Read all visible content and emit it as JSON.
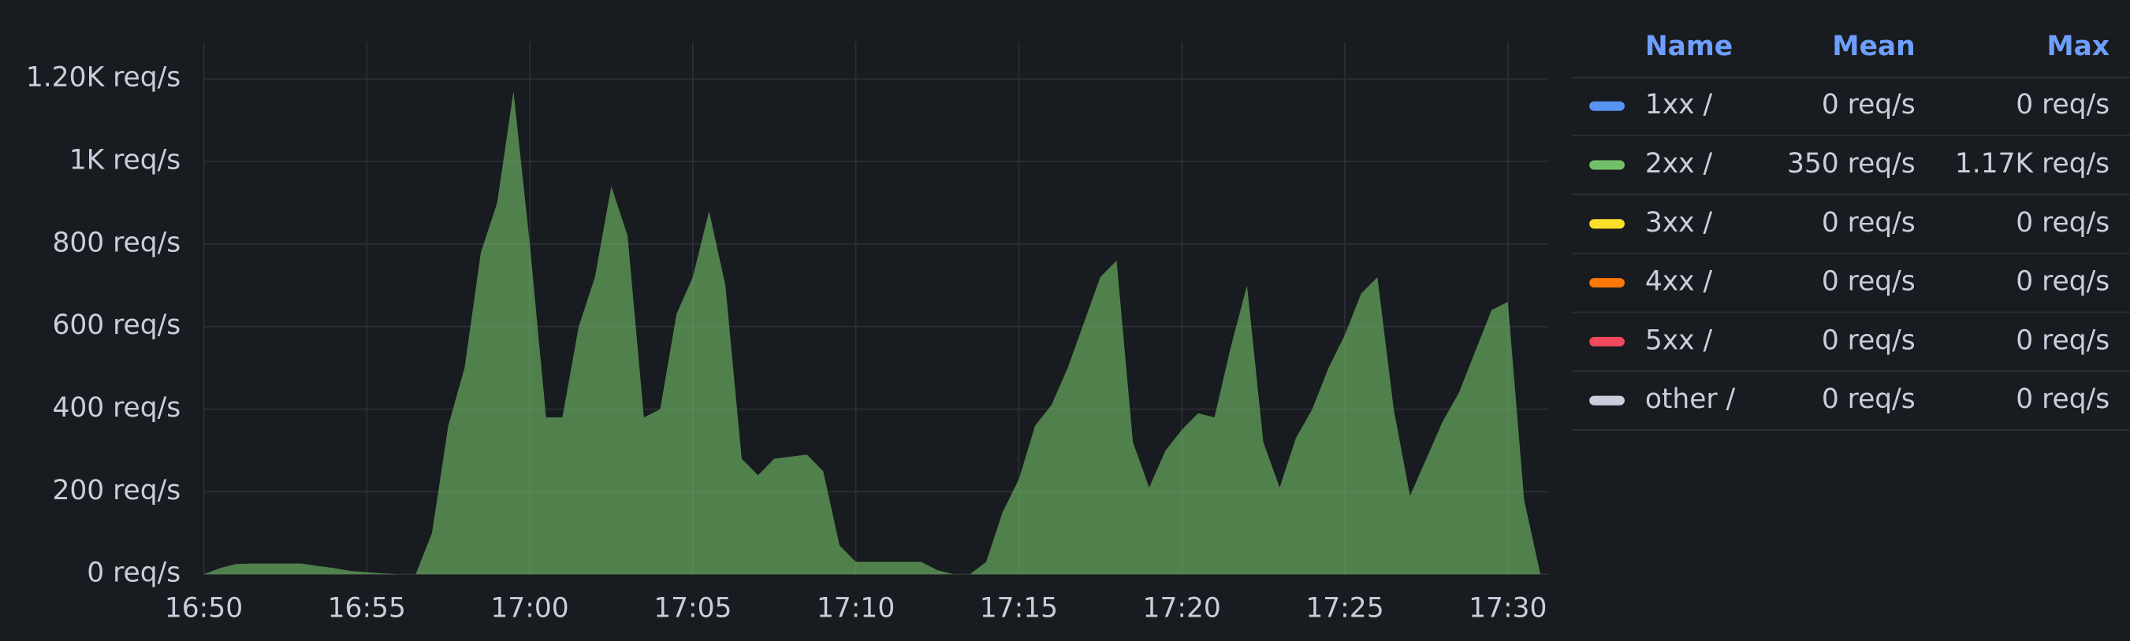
{
  "chart_data": {
    "type": "area",
    "x": [
      "16:50:00",
      "16:50:30",
      "16:51:00",
      "16:51:30",
      "16:52:00",
      "16:52:30",
      "16:53:00",
      "16:53:30",
      "16:54:00",
      "16:54:30",
      "16:55:00",
      "16:55:30",
      "16:56:00",
      "16:56:30",
      "16:57:00",
      "16:57:30",
      "16:58:00",
      "16:58:30",
      "16:59:00",
      "16:59:30",
      "17:00:00",
      "17:00:30",
      "17:01:00",
      "17:01:30",
      "17:02:00",
      "17:02:30",
      "17:03:00",
      "17:03:30",
      "17:04:00",
      "17:04:30",
      "17:05:00",
      "17:05:30",
      "17:06:00",
      "17:06:30",
      "17:07:00",
      "17:07:30",
      "17:08:00",
      "17:08:30",
      "17:09:00",
      "17:09:30",
      "17:10:00",
      "17:10:30",
      "17:11:00",
      "17:11:30",
      "17:12:00",
      "17:12:30",
      "17:13:00",
      "17:13:30",
      "17:14:00",
      "17:14:30",
      "17:15:00",
      "17:15:30",
      "17:16:00",
      "17:16:30",
      "17:17:00",
      "17:17:30",
      "17:18:00",
      "17:18:30",
      "17:19:00",
      "17:19:30",
      "17:20:00",
      "17:20:30",
      "17:21:00",
      "17:21:30",
      "17:22:00",
      "17:22:30",
      "17:23:00",
      "17:23:30",
      "17:24:00",
      "17:24:30",
      "17:25:00",
      "17:25:30",
      "17:26:00",
      "17:26:30",
      "17:27:00",
      "17:27:30",
      "17:28:00",
      "17:28:30",
      "17:29:00",
      "17:29:30",
      "17:30:00",
      "17:30:30",
      "17:31:00"
    ],
    "xlim": [
      "16:50:00",
      "17:31:15"
    ],
    "xticks": [
      "16:50",
      "16:55",
      "17:00",
      "17:05",
      "17:10",
      "17:15",
      "17:20",
      "17:25",
      "17:30"
    ],
    "ylim": [
      0,
      1290
    ],
    "yticks": [
      {
        "value": 0,
        "label": "0 req/s"
      },
      {
        "value": 200,
        "label": "200 req/s"
      },
      {
        "value": 400,
        "label": "400 req/s"
      },
      {
        "value": 600,
        "label": "600 req/s"
      },
      {
        "value": 800,
        "label": "800 req/s"
      },
      {
        "value": 1000,
        "label": "1K req/s"
      },
      {
        "value": 1200,
        "label": "1.20K req/s"
      }
    ],
    "grid": true,
    "legend": {
      "position": "right",
      "columns": [
        "Name",
        "Mean",
        "Max"
      ]
    },
    "series": [
      {
        "name": "1xx /",
        "color": "#5794f2",
        "mean": {
          "value": 0,
          "label": "0 req/s"
        },
        "max": {
          "value": 0,
          "label": "0 req/s"
        },
        "values": [
          0,
          0,
          0,
          0,
          0,
          0,
          0,
          0,
          0,
          0,
          0,
          0,
          0,
          0,
          0,
          0,
          0,
          0,
          0,
          0,
          0,
          0,
          0,
          0,
          0,
          0,
          0,
          0,
          0,
          0,
          0,
          0,
          0,
          0,
          0,
          0,
          0,
          0,
          0,
          0,
          0,
          0,
          0,
          0,
          0,
          0,
          0,
          0,
          0,
          0,
          0,
          0,
          0,
          0,
          0,
          0,
          0,
          0,
          0,
          0,
          0,
          0,
          0,
          0,
          0,
          0,
          0,
          0,
          0,
          0,
          0,
          0,
          0,
          0,
          0,
          0,
          0,
          0,
          0,
          0,
          0,
          0,
          0
        ]
      },
      {
        "name": "2xx /",
        "color": "#73bf69",
        "mean": {
          "value": 350,
          "label": "350 req/s"
        },
        "max": {
          "value": 1170,
          "label": "1.17K req/s"
        },
        "values": [
          0,
          15,
          25,
          26,
          26,
          26,
          26,
          20,
          15,
          8,
          5,
          2,
          0,
          0,
          100,
          360,
          500,
          780,
          900,
          1170,
          800,
          380,
          380,
          600,
          720,
          940,
          820,
          380,
          400,
          630,
          720,
          880,
          700,
          280,
          240,
          280,
          285,
          290,
          250,
          70,
          30,
          30,
          30,
          30,
          30,
          10,
          0,
          0,
          30,
          150,
          230,
          360,
          410,
          500,
          610,
          720,
          760,
          320,
          210,
          300,
          350,
          390,
          380,
          550,
          700,
          320,
          210,
          330,
          400,
          500,
          580,
          680,
          720,
          400,
          190,
          280,
          370,
          440,
          540,
          640,
          660,
          180,
          0
        ]
      },
      {
        "name": "3xx /",
        "color": "#fade2a",
        "mean": {
          "value": 0,
          "label": "0 req/s"
        },
        "max": {
          "value": 0,
          "label": "0 req/s"
        },
        "values": [
          0,
          0,
          0,
          0,
          0,
          0,
          0,
          0,
          0,
          0,
          0,
          0,
          0,
          0,
          0,
          0,
          0,
          0,
          0,
          0,
          0,
          0,
          0,
          0,
          0,
          0,
          0,
          0,
          0,
          0,
          0,
          0,
          0,
          0,
          0,
          0,
          0,
          0,
          0,
          0,
          0,
          0,
          0,
          0,
          0,
          0,
          0,
          0,
          0,
          0,
          0,
          0,
          0,
          0,
          0,
          0,
          0,
          0,
          0,
          0,
          0,
          0,
          0,
          0,
          0,
          0,
          0,
          0,
          0,
          0,
          0,
          0,
          0,
          0,
          0,
          0,
          0,
          0,
          0,
          0,
          0,
          0,
          0
        ]
      },
      {
        "name": "4xx /",
        "color": "#ff780a",
        "mean": {
          "value": 0,
          "label": "0 req/s"
        },
        "max": {
          "value": 0,
          "label": "0 req/s"
        },
        "values": [
          0,
          0,
          0,
          0,
          0,
          0,
          0,
          0,
          0,
          0,
          0,
          0,
          0,
          0,
          0,
          0,
          0,
          0,
          0,
          0,
          0,
          0,
          0,
          0,
          0,
          0,
          0,
          0,
          0,
          0,
          0,
          0,
          0,
          0,
          0,
          0,
          0,
          0,
          0,
          0,
          0,
          0,
          0,
          0,
          0,
          0,
          0,
          0,
          0,
          0,
          0,
          0,
          0,
          0,
          0,
          0,
          0,
          0,
          0,
          0,
          0,
          0,
          0,
          0,
          0,
          0,
          0,
          0,
          0,
          0,
          0,
          0,
          0,
          0,
          0,
          0,
          0,
          0,
          0,
          0,
          0,
          0,
          0
        ]
      },
      {
        "name": "5xx /",
        "color": "#f2495c",
        "mean": {
          "value": 0,
          "label": "0 req/s"
        },
        "max": {
          "value": 0,
          "label": "0 req/s"
        },
        "values": [
          0,
          0,
          0,
          0,
          0,
          0,
          0,
          0,
          0,
          0,
          0,
          0,
          0,
          0,
          0,
          0,
          0,
          0,
          0,
          0,
          0,
          0,
          0,
          0,
          0,
          0,
          0,
          0,
          0,
          0,
          0,
          0,
          0,
          0,
          0,
          0,
          0,
          0,
          0,
          0,
          0,
          0,
          0,
          0,
          0,
          0,
          0,
          0,
          0,
          0,
          0,
          0,
          0,
          0,
          0,
          0,
          0,
          0,
          0,
          0,
          0,
          0,
          0,
          0,
          0,
          0,
          0,
          0,
          0,
          0,
          0,
          0,
          0,
          0,
          0,
          0,
          0,
          0,
          0,
          0,
          0,
          0,
          0
        ]
      },
      {
        "name": "other /",
        "color": "#ccccdc",
        "mean": {
          "value": 0,
          "label": "0 req/s"
        },
        "max": {
          "value": 0,
          "label": "0 req/s"
        },
        "values": [
          0,
          0,
          0,
          0,
          0,
          0,
          0,
          0,
          0,
          0,
          0,
          0,
          0,
          0,
          0,
          0,
          0,
          0,
          0,
          0,
          0,
          0,
          0,
          0,
          0,
          0,
          0,
          0,
          0,
          0,
          0,
          0,
          0,
          0,
          0,
          0,
          0,
          0,
          0,
          0,
          0,
          0,
          0,
          0,
          0,
          0,
          0,
          0,
          0,
          0,
          0,
          0,
          0,
          0,
          0,
          0,
          0,
          0,
          0,
          0,
          0,
          0,
          0,
          0,
          0,
          0,
          0,
          0,
          0,
          0,
          0,
          0,
          0,
          0,
          0,
          0,
          0,
          0,
          0,
          0,
          0,
          0,
          0
        ]
      }
    ]
  }
}
